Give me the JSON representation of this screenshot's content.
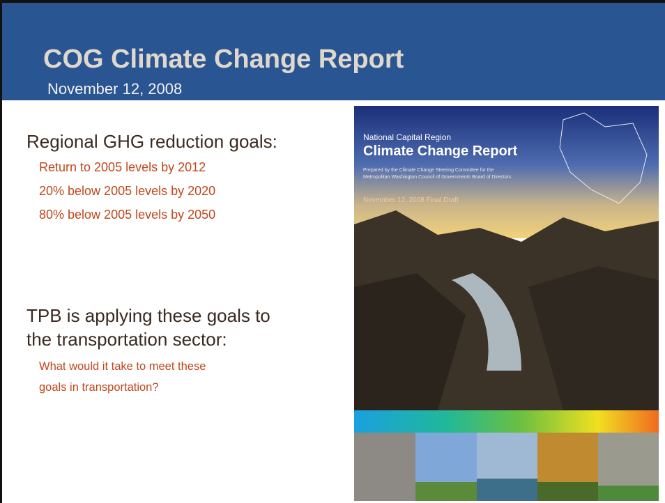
{
  "header": {
    "title": "COG Climate Change Report",
    "date": "November 12, 2008"
  },
  "goals": {
    "heading": "Regional GHG reduction goals:",
    "items": [
      "Return to 2005 levels by 2012",
      "20% below 2005 levels by 2020",
      "80% below 2005 levels by 2050"
    ]
  },
  "tpb": {
    "heading_lines": [
      "TPB is applying these goals to",
      "the transportation sector:"
    ],
    "question_lines": [
      "What would it take to meet these",
      "goals in transportation?"
    ]
  },
  "cover": {
    "region": "National Capital Region",
    "title": "Climate Change Report",
    "prepared_lines": [
      "Prepared by the Climate Change Steering Committee for the",
      "Metropolitan Washington Council of Governments Board of Directors"
    ],
    "date": "November 12, 2008 Final Draft"
  }
}
